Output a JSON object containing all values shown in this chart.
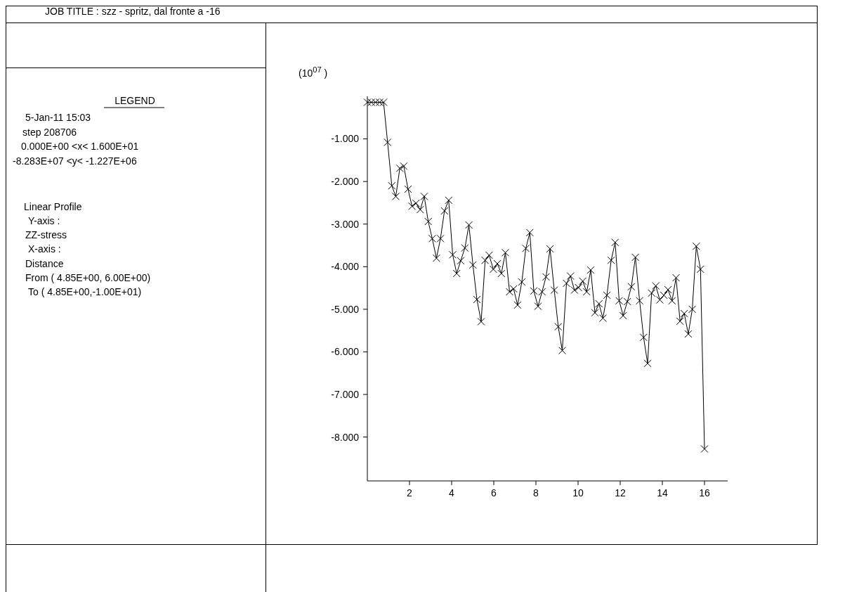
{
  "chart_data": {
    "type": "line",
    "title": "JOB TITLE : szz - spritz, dal fronte a -16",
    "ylabel": "(10$^{07}$ )",
    "annotations": [
      "LEGEND",
      "5-Jan-11  15:03",
      "step   208706",
      "0.000E+00 <x<  1.600E+01",
      "-8.283E+07 <y< -1.227E+06",
      "Linear Profile",
      "Y-axis :",
      "ZZ-stress",
      "X-axis :",
      "Distance",
      "From ( 4.85E+00, 6.00E+00)",
      "To ( 4.85E+00,-1.00E+01)"
    ],
    "x": [
      0,
      0.19,
      0.39,
      0.58,
      0.77,
      0.96,
      1.16,
      1.35,
      1.54,
      1.73,
      1.93,
      2.12,
      2.31,
      2.51,
      2.7,
      2.89,
      3.08,
      3.28,
      3.47,
      3.66,
      3.86,
      4.05,
      4.24,
      4.43,
      4.63,
      4.82,
      5.01,
      5.2,
      5.4,
      5.59,
      5.78,
      5.98,
      6.17,
      6.36,
      6.55,
      6.75,
      6.94,
      7.13,
      7.33,
      7.52,
      7.71,
      7.9,
      8.1,
      8.29,
      8.48,
      8.67,
      8.87,
      9.06,
      9.25,
      9.45,
      9.64,
      9.83,
      10.02,
      10.22,
      10.41,
      10.6,
      10.8,
      10.99,
      11.18,
      11.37,
      11.57,
      11.76,
      11.95,
      12.14,
      12.34,
      12.53,
      12.72,
      12.92,
      13.11,
      13.3,
      13.49,
      13.69,
      13.88,
      14.07,
      14.27,
      14.46,
      14.65,
      14.84,
      15.04,
      15.23,
      15.42,
      15.61,
      15.81,
      16
    ],
    "series": [
      {
        "color": "#000000",
        "values": [
          -0.14,
          -0.14,
          -0.14,
          -0.14,
          -0.14,
          -1.08,
          -2.1,
          -2.35,
          -1.69,
          -1.64,
          -2.18,
          -2.58,
          -2.51,
          -2.66,
          -2.35,
          -2.94,
          -3.34,
          -3.8,
          -3.34,
          -2.69,
          -2.44,
          -3.72,
          -4.16,
          -3.86,
          -3.56,
          -3.02,
          -3.96,
          -4.77,
          -5.29,
          -3.85,
          -3.73,
          -4.06,
          -3.93,
          -4.16,
          -3.67,
          -4.59,
          -4.52,
          -4.9,
          -4.36,
          -3.57,
          -3.2,
          -4.57,
          -4.93,
          -4.59,
          -4.24,
          -3.58,
          -4.55,
          -5.41,
          -5.97,
          -4.39,
          -4.22,
          -4.55,
          -4.49,
          -4.34,
          -4.59,
          -4.08,
          -5.08,
          -4.87,
          -5.21,
          -4.67,
          -3.85,
          -3.43,
          -4.8,
          -5.15,
          -4.82,
          -4.47,
          -3.78,
          -4.8,
          -5.66,
          -6.27,
          -4.62,
          -4.45,
          -4.78,
          -4.67,
          -4.54,
          -4.8,
          -4.26,
          -5.28,
          -5.1,
          -5.58,
          -5.0,
          -3.52,
          -4.06,
          -8.28
        ]
      }
    ],
    "xlim": [
      0,
      17.1
    ],
    "ylim": [
      -9.03,
      0
    ],
    "xticks": [
      2,
      4,
      6,
      8,
      10,
      12,
      14,
      16
    ],
    "yticks": [
      {
        "value": -1,
        "label": "-1.000"
      },
      {
        "value": -2,
        "label": "-2.000"
      },
      {
        "value": -3,
        "label": "-3.000"
      },
      {
        "value": -4,
        "label": "-4.000"
      },
      {
        "value": -5,
        "label": "-5.000"
      },
      {
        "value": -6,
        "label": "-6.000"
      },
      {
        "value": -7,
        "label": "-7.000"
      },
      {
        "value": -8,
        "label": "-8.000"
      }
    ],
    "marker": "cross",
    "line_style": "solid",
    "grid": false
  }
}
